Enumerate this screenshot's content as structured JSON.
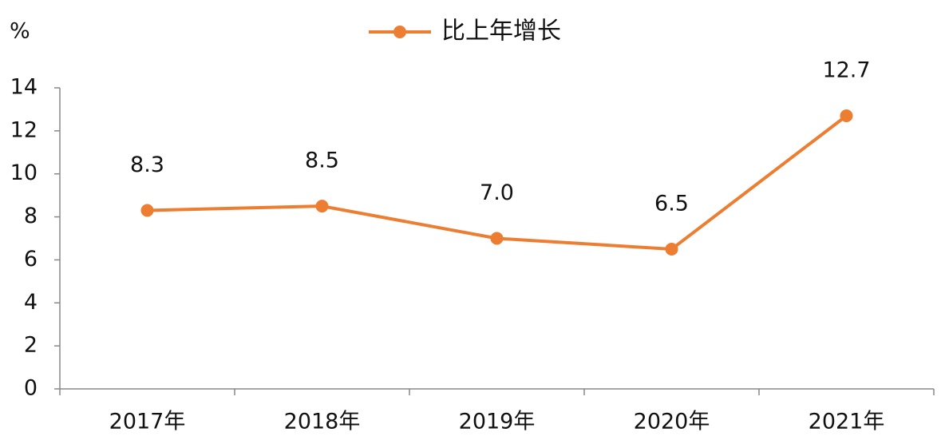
{
  "chart_data": {
    "type": "line",
    "y_label": "%",
    "categories": [
      "2017年",
      "2018年",
      "2019年",
      "2020年",
      "2021年"
    ],
    "series": [
      {
        "name": "比上年增长",
        "color": "#ed7d31",
        "values": [
          8.3,
          8.5,
          7.0,
          6.5,
          12.7
        ],
        "value_labels": [
          "8.3",
          "8.5",
          "7.0",
          "6.5",
          "12.7"
        ]
      }
    ],
    "ylim": [
      0,
      14
    ],
    "yticks": [
      0,
      2,
      4,
      6,
      8,
      10,
      12,
      14
    ],
    "grid": false,
    "legend": "top"
  }
}
